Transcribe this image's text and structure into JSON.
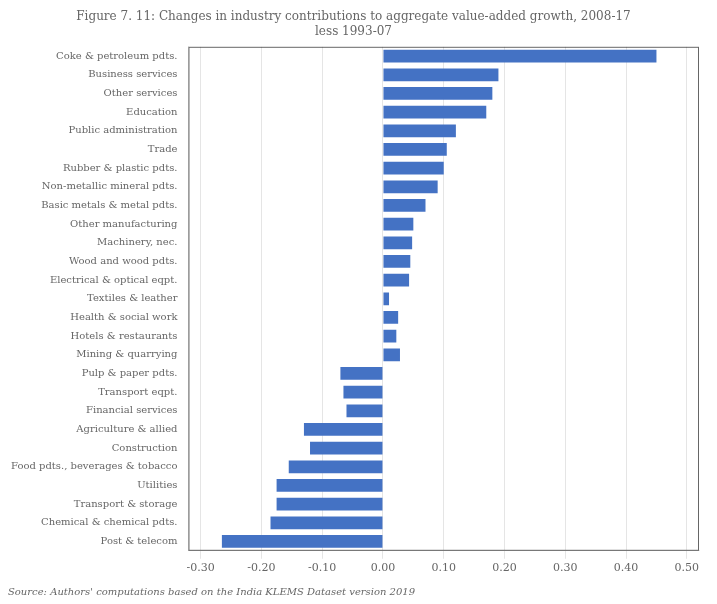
{
  "chart_data": {
    "type": "bar",
    "orientation": "horizontal",
    "title": "Figure 7. 11: Changes in industry contributions to aggregate value-added growth, 2008-17\nless 1993-07",
    "annotations": [
      "Source: Authors' computations based on the India KLEMS Dataset version 2019"
    ],
    "categories": [
      "Coke & petroleum pdts.",
      "Business services",
      "Other services",
      "Education",
      "Public administration",
      "Trade",
      "Rubber & plastic pdts.",
      "Non-metallic mineral pdts.",
      "Basic metals & metal pdts.",
      "Other manufacturing",
      "Machinery, nec.",
      "Wood and wood pdts.",
      "Electrical & optical eqpt.",
      "Textiles & leather",
      "Health & social work",
      "Hotels & restaurants",
      "Mining & quarrying",
      "Pulp & paper pdts.",
      "Transport eqpt.",
      "Financial services",
      "Agriculture & allied",
      "Construction",
      "Food pdts., beverages & tobacco",
      "Utilities",
      "Transport & storage",
      "Chemical & chemical pdts.",
      "Post & telecom"
    ],
    "values": [
      0.45,
      0.19,
      0.18,
      0.17,
      0.12,
      0.105,
      0.1,
      0.09,
      0.07,
      0.05,
      0.048,
      0.045,
      0.043,
      0.01,
      0.025,
      0.022,
      0.028,
      -0.07,
      -0.065,
      -0.06,
      -0.13,
      -0.12,
      -0.155,
      -0.175,
      -0.175,
      -0.185,
      -0.265
    ],
    "color": "#4472C4",
    "xlim": [
      -0.32,
      0.52
    ],
    "xticks": [
      {
        "value": -0.3,
        "label": "-0.30"
      },
      {
        "value": -0.2,
        "label": "-0.20"
      },
      {
        "value": -0.1,
        "label": "-0.10"
      },
      {
        "value": 0.0,
        "label": "0.00"
      },
      {
        "value": 0.1,
        "label": "0.10"
      },
      {
        "value": 0.2,
        "label": "0.20"
      },
      {
        "value": 0.3,
        "label": "0.30"
      },
      {
        "value": 0.4,
        "label": "0.40"
      },
      {
        "value": 0.5,
        "label": "0.50"
      }
    ],
    "grid": true
  }
}
